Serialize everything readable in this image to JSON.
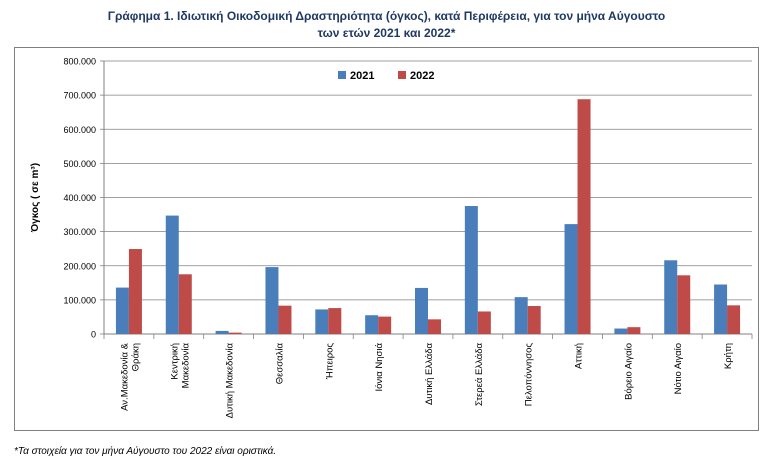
{
  "title_line1": "Γράφημα 1.  Ιδιωτική Οικοδομική Δραστηριότητα (όγκος), κατά Περιφέρεια, για τον μήνα Αύγουστο",
  "title_line2": "των ετών 2021 και 2022*",
  "footnote": "*Τα στοιχεία για τον μήνα Αύγουστο του 2022 είναι οριστικά.",
  "colors": {
    "s2021": "#4a7ebb",
    "s2022": "#be4b48",
    "grid": "#808080"
  },
  "chart_data": {
    "type": "bar",
    "title": "Γράφημα 1.  Ιδιωτική Οικοδομική Δραστηριότητα (όγκος), κατά Περιφέρεια, για τον μήνα Αύγουστο των ετών 2021 και 2022*",
    "xlabel": "",
    "ylabel": "Όγκος ( σε m³)",
    "ylim": [
      0,
      800000
    ],
    "yticks": [
      "0",
      "100.000",
      "200.000",
      "300.000",
      "400.000",
      "500.000",
      "600.000",
      "700.000",
      "800.000"
    ],
    "grid": true,
    "legend": "top",
    "categories": [
      [
        "Αν.Μακεδονία &",
        "Θράκη"
      ],
      [
        "Κεντρική",
        "Μακεδονία"
      ],
      [
        "Δυτική Μακεδονία"
      ],
      [
        "Θεσσαλία"
      ],
      [
        "Ήπειρος"
      ],
      [
        "Ιόνια Νησιά"
      ],
      [
        "Δυτική Ελλάδα"
      ],
      [
        "Στερεά Ελλάδα"
      ],
      [
        "Πελοπόννησος"
      ],
      [
        "Αττική"
      ],
      [
        "Βόρειο Αιγαίο"
      ],
      [
        "Νότιο Αιγαίο"
      ],
      [
        "Κρήτη"
      ]
    ],
    "series": [
      {
        "name": "2021",
        "values": [
          136000,
          347000,
          9000,
          196000,
          72000,
          55000,
          135000,
          375000,
          108000,
          322000,
          16000,
          216000,
          145000
        ]
      },
      {
        "name": "2022",
        "values": [
          249000,
          175000,
          4000,
          83000,
          76000,
          51000,
          43000,
          66000,
          82000,
          688000,
          20000,
          172000,
          84000
        ]
      }
    ]
  }
}
